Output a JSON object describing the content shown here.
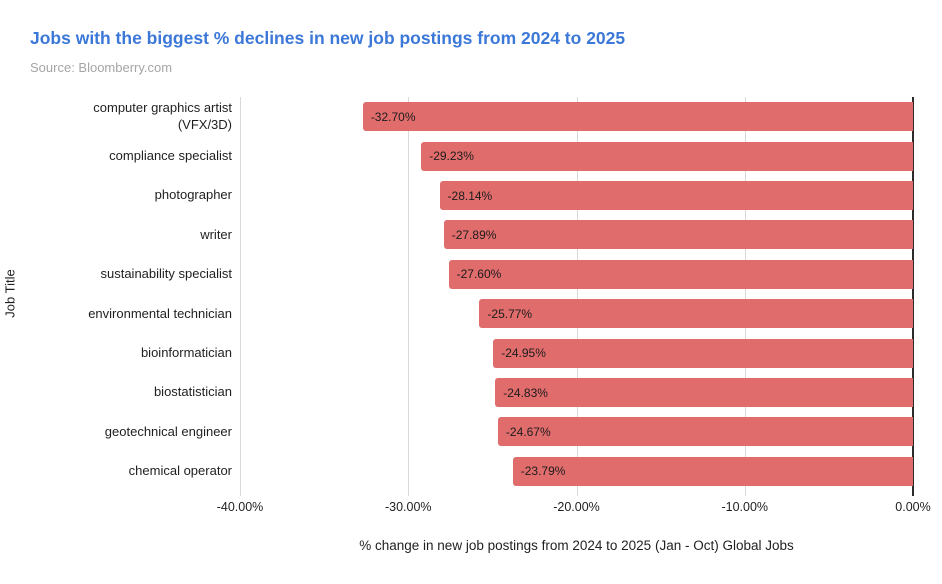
{
  "header": {
    "source": "Source: Bloomberry.com"
  },
  "chart_data": {
    "type": "bar",
    "orientation": "horizontal",
    "title": "Jobs with the biggest % declines in new job postings from 2024 to 2025",
    "categories": [
      "computer graphics artist (VFX/3D)",
      "compliance specialist",
      "photographer",
      "writer",
      "sustainability specialist",
      "environmental technician",
      "bioinformatician",
      "biostatistician",
      "geotechnical engineer",
      "chemical operator"
    ],
    "values": [
      -32.7,
      -29.23,
      -28.14,
      -27.89,
      -27.6,
      -25.77,
      -24.95,
      -24.83,
      -24.67,
      -23.79
    ],
    "value_labels": [
      "-32.70%",
      "-29.23%",
      "-28.14%",
      "-27.89%",
      "-27.60%",
      "-25.77%",
      "-24.95%",
      "-24.83%",
      "-24.67%",
      "-23.79%"
    ],
    "xlabel": "% change in new job postings from 2024 to 2025 (Jan - Oct) Global Jobs",
    "ylabel": "Job Title",
    "xlim": [
      -40,
      0
    ],
    "xticks": [
      -40,
      -30,
      -20,
      -10,
      0
    ],
    "xtick_labels": [
      "-40.00%",
      "-30.00%",
      "-20.00%",
      "-10.00%",
      "0.00%"
    ],
    "grid": true,
    "legend": "none",
    "colors": {
      "bar": "#e06c6c",
      "title": "#3c78d8",
      "source_text": "#a5a5a5",
      "gridline": "#d9d9d9",
      "zero_line": "#2b2b2b",
      "text": "#1f1f1f"
    }
  }
}
